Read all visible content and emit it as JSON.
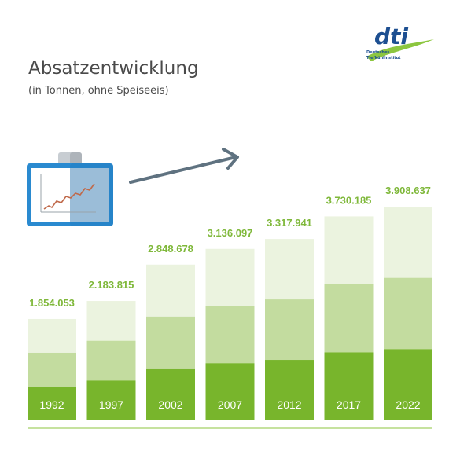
{
  "header": {
    "title": "Absatzentwicklung",
    "subtitle": "(in Tonnen, ohne Speiseeis)"
  },
  "logo": {
    "mark": "dti",
    "line1": "Deutsches",
    "line2": "Tiefkühlinstitut"
  },
  "icons": {
    "whiteboard": "whiteboard-chart-icon",
    "arrow": "trend-arrow-icon"
  },
  "colors": {
    "dark_green": "#78b52c",
    "mid_green": "#c3dc9f",
    "light_green": "#ebf3df",
    "value_text": "#7fb83a",
    "logo_blue": "#1d4f91",
    "logo_green": "#8cc63f",
    "arrow_gray": "#5f7280",
    "board_blue": "#2a8ad0"
  },
  "chart_data": {
    "type": "bar",
    "title": "Absatzentwicklung",
    "subtitle": "(in Tonnen, ohne Speiseeis)",
    "categories": [
      "1992",
      "1997",
      "2002",
      "2007",
      "2012",
      "2017",
      "2022"
    ],
    "values": [
      1854053,
      2183815,
      2848678,
      3136097,
      3317941,
      3730185,
      3908637
    ],
    "value_labels": [
      "1.854.053",
      "2.183.815",
      "2.848.678",
      "3.136.097",
      "3.317.941",
      "3.730.185",
      "3.908.637"
    ],
    "xlabel": "",
    "ylabel": "",
    "ylim": [
      0,
      3908637
    ],
    "grid": false,
    "legend": "none"
  }
}
